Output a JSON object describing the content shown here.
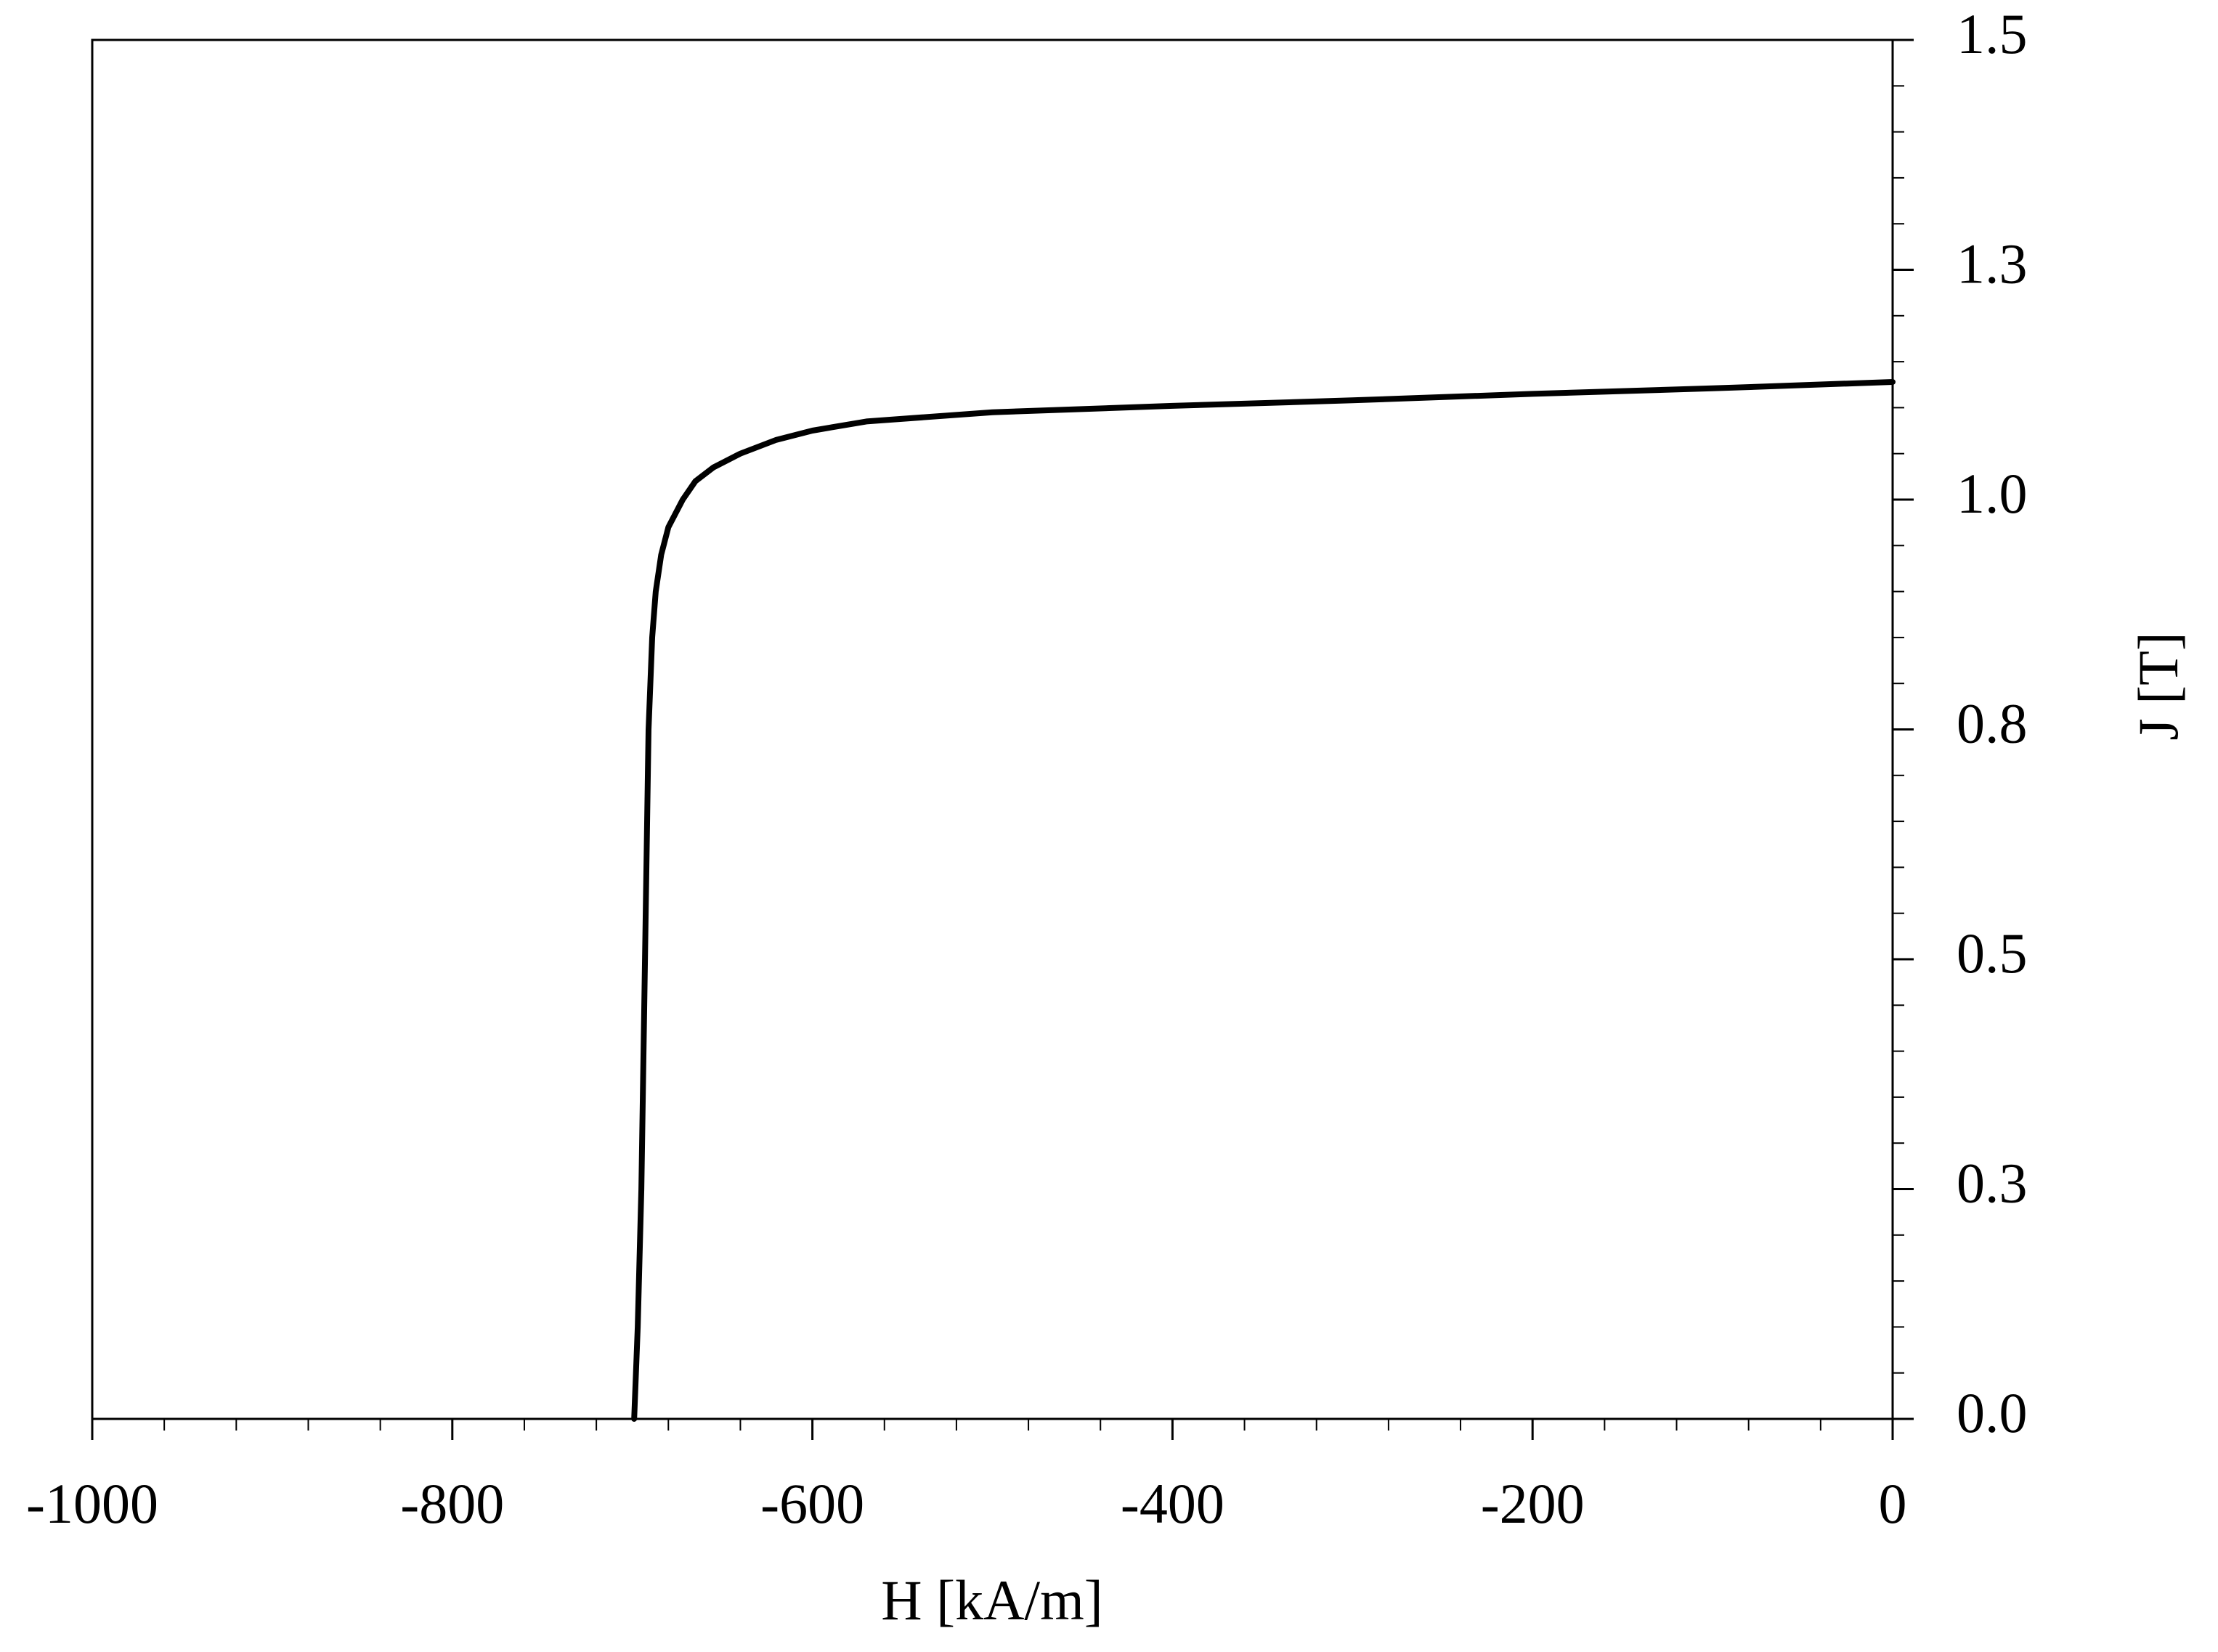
{
  "chart_data": {
    "type": "line",
    "xlabel": "H [kA/m]",
    "ylabel": "J [T]",
    "x": [
      -699,
      -697,
      -695,
      -693,
      -691,
      -689,
      -687,
      -684,
      -680,
      -672,
      -665,
      -655,
      -640,
      -620,
      -600,
      -570,
      -500,
      -400,
      -300,
      -200,
      -100,
      0
    ],
    "values": [
      0,
      0.1,
      0.25,
      0.5,
      0.75,
      0.85,
      0.9,
      0.94,
      0.97,
      1.0,
      1.02,
      1.035,
      1.05,
      1.065,
      1.075,
      1.085,
      1.095,
      1.102,
      1.108,
      1.115,
      1.121,
      1.128
    ],
    "color": "#000000",
    "xlim": [
      -1000,
      0
    ],
    "ylim": [
      0,
      1.5
    ],
    "xticks": [
      -1000,
      -800,
      -600,
      -400,
      -200,
      0
    ],
    "yticks": [
      {
        "value": 0,
        "label": "0.0"
      },
      {
        "value": 0.25,
        "label": "0.3"
      },
      {
        "value": 0.5,
        "label": "0.5"
      },
      {
        "value": 0.75,
        "label": "0.8"
      },
      {
        "value": 1,
        "label": "1.0"
      },
      {
        "value": 1.25,
        "label": "1.3"
      },
      1.5
    ],
    "xminorticks": [
      -960,
      -920,
      -880,
      -840,
      -760,
      -720,
      -680,
      -640,
      -560,
      -520,
      -480,
      -440,
      -360,
      -320,
      -280,
      -240,
      -160,
      -120,
      -80,
      -40
    ],
    "yminorticks": [
      0.05,
      0.1,
      0.15,
      0.2,
      0.3,
      0.35,
      0.4,
      0.45,
      0.55,
      0.6,
      0.65,
      0.7,
      0.8,
      0.85,
      0.9,
      0.95,
      1.05,
      1.1,
      1.15,
      1.2,
      1.3,
      1.35,
      1.4,
      1.45
    ]
  }
}
